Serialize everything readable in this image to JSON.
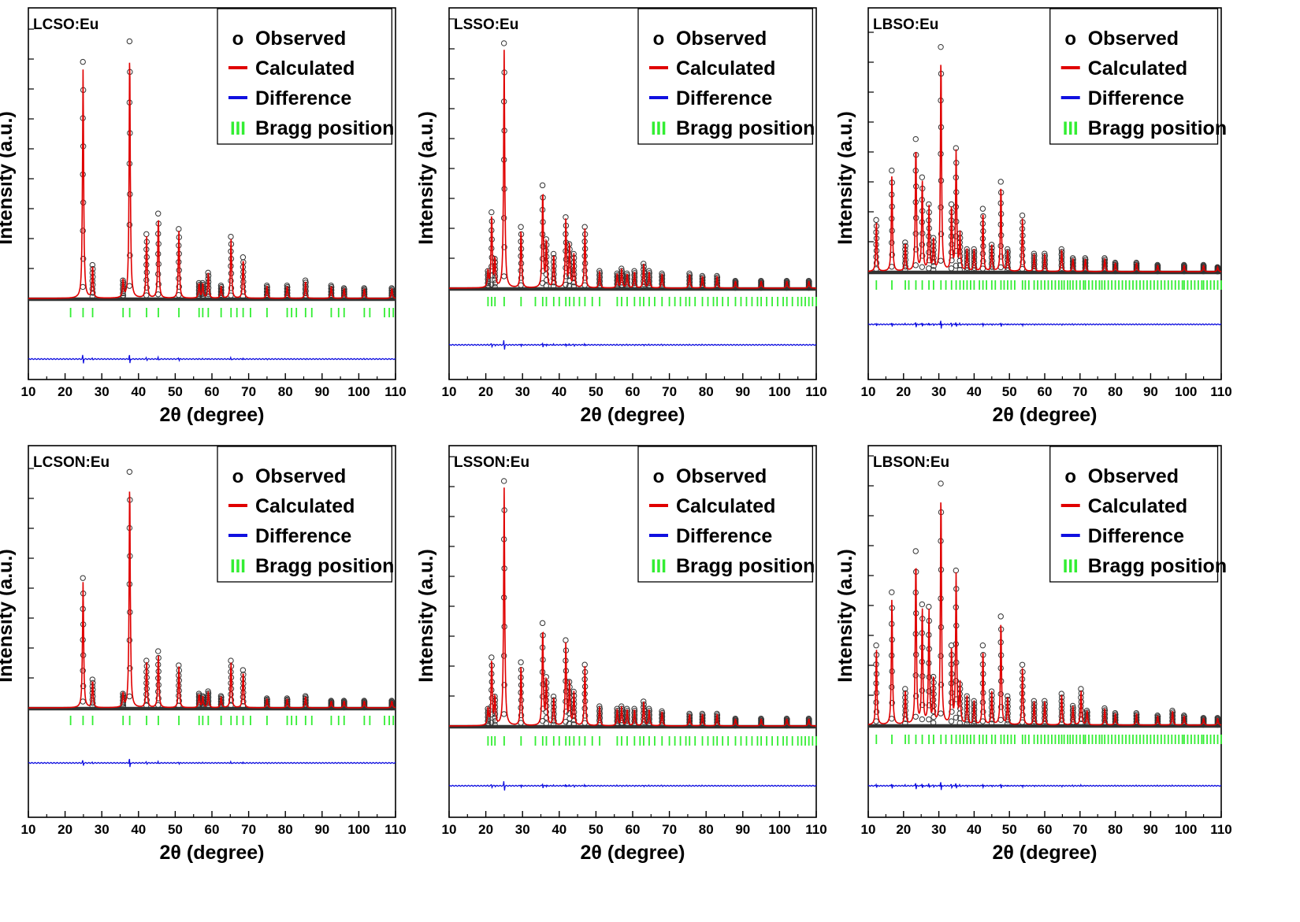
{
  "figure": {
    "background": "#ffffff"
  },
  "colors": {
    "observed": "#333333",
    "calculated": "#e00000",
    "difference": "#1010e0",
    "bragg": "#33ee33",
    "axis": "#000000"
  },
  "legend": {
    "observed_symbol": "o",
    "observed": "Observed",
    "calculated": "Calculated",
    "difference": "Difference",
    "bragg_symbol": "III",
    "bragg": "Bragg position"
  },
  "chart_data": [
    {
      "type": "line",
      "title": "LCSO:Eu",
      "xlabel": "2θ (degree)",
      "ylabel": "Intensity (a.u.)",
      "xlim": [
        10,
        110
      ],
      "xticks": [
        10,
        20,
        30,
        40,
        50,
        60,
        70,
        80,
        90,
        100,
        110
      ],
      "yticks_labeled": false,
      "legend_position": "top-right",
      "series": [
        {
          "name": "Observed",
          "kind": "scatter-open-circles"
        },
        {
          "name": "Calculated",
          "kind": "line"
        },
        {
          "name": "Difference",
          "kind": "line"
        },
        {
          "name": "Bragg position",
          "kind": "ticks"
        }
      ],
      "peaks": [
        [
          24.9,
          0.92
        ],
        [
          27.5,
          0.13
        ],
        [
          35.8,
          0.07
        ],
        [
          37.6,
          1.0
        ],
        [
          42.2,
          0.25
        ],
        [
          45.4,
          0.33
        ],
        [
          51.0,
          0.27
        ],
        [
          56.5,
          0.06
        ],
        [
          57.5,
          0.06
        ],
        [
          59.0,
          0.1
        ],
        [
          62.5,
          0.05
        ],
        [
          65.2,
          0.24
        ],
        [
          68.5,
          0.16
        ],
        [
          75.0,
          0.05
        ],
        [
          80.5,
          0.05
        ],
        [
          85.5,
          0.07
        ],
        [
          92.5,
          0.05
        ],
        [
          96.0,
          0.04
        ],
        [
          101.5,
          0.04
        ],
        [
          109.0,
          0.04
        ]
      ],
      "bragg_positions": [
        21.5,
        24.9,
        27.5,
        35.8,
        37.6,
        42.2,
        45.4,
        51.0,
        56.5,
        57.5,
        59.0,
        62.5,
        65.2,
        66.8,
        68.5,
        70.5,
        75.0,
        80.5,
        81.7,
        83.0,
        85.5,
        87.2,
        92.5,
        94.5,
        96.0,
        101.5,
        103.0,
        107.0,
        108.3,
        109.4
      ]
    },
    {
      "type": "line",
      "title": "LSSO:Eu",
      "xlabel": "2θ (degree)",
      "ylabel": "Intensity (a.u.)",
      "xlim": [
        10,
        110
      ],
      "xticks": [
        10,
        20,
        30,
        40,
        50,
        60,
        70,
        80,
        90,
        100,
        110
      ],
      "yticks_labeled": false,
      "legend_position": "top-right",
      "series": [
        {
          "name": "Observed",
          "kind": "scatter-open-circles"
        },
        {
          "name": "Calculated",
          "kind": "line"
        },
        {
          "name": "Difference",
          "kind": "line"
        },
        {
          "name": "Bragg position",
          "kind": "ticks"
        }
      ],
      "peaks": [
        [
          20.6,
          0.07
        ],
        [
          21.6,
          0.31
        ],
        [
          22.5,
          0.12
        ],
        [
          25.0,
          1.0
        ],
        [
          29.6,
          0.25
        ],
        [
          35.5,
          0.42
        ],
        [
          36.5,
          0.2
        ],
        [
          38.5,
          0.14
        ],
        [
          41.8,
          0.29
        ],
        [
          42.8,
          0.18
        ],
        [
          44.0,
          0.14
        ],
        [
          47.0,
          0.25
        ],
        [
          51.0,
          0.07
        ],
        [
          55.8,
          0.06
        ],
        [
          57.0,
          0.08
        ],
        [
          58.5,
          0.06
        ],
        [
          60.5,
          0.07
        ],
        [
          63.0,
          0.1
        ],
        [
          64.5,
          0.07
        ],
        [
          68.0,
          0.06
        ],
        [
          75.5,
          0.06
        ],
        [
          79.0,
          0.05
        ],
        [
          83.0,
          0.05
        ],
        [
          88.0,
          0.03
        ],
        [
          95.0,
          0.03
        ],
        [
          102.0,
          0.03
        ],
        [
          108.0,
          0.03
        ]
      ],
      "bragg_positions": [
        20.6,
        21.6,
        22.5,
        25.0,
        29.6,
        33.5,
        35.5,
        36.5,
        38.5,
        40.0,
        41.8,
        42.8,
        44.0,
        45.5,
        47.0,
        49.0,
        51.0,
        55.8,
        57.0,
        58.5,
        60.5,
        62.0,
        63.0,
        64.5,
        66.0,
        68.0,
        70.0,
        71.5,
        73.0,
        74.5,
        75.5,
        77.0,
        79.0,
        80.5,
        82.0,
        83.0,
        84.5,
        86.0,
        88.0,
        89.5,
        91.0,
        92.5,
        94.0,
        95.0,
        96.5,
        98.0,
        99.5,
        101.0,
        102.0,
        103.5,
        105.0,
        106.0,
        107.0,
        108.0,
        109.0,
        110.0
      ]
    },
    {
      "type": "line",
      "title": "LBSO:Eu",
      "xlabel": "2θ (degree)",
      "ylabel": "Intensity (a.u.)",
      "xlim": [
        10,
        110
      ],
      "xticks": [
        10,
        20,
        30,
        40,
        50,
        60,
        70,
        80,
        90,
        100,
        110
      ],
      "yticks_labeled": false,
      "legend_position": "top-right",
      "series": [
        {
          "name": "Observed",
          "kind": "scatter-open-circles"
        },
        {
          "name": "Calculated",
          "kind": "line"
        },
        {
          "name": "Difference",
          "kind": "line"
        },
        {
          "name": "Bragg position",
          "kind": "ticks"
        }
      ],
      "peaks": [
        [
          12.3,
          0.23
        ],
        [
          16.7,
          0.45
        ],
        [
          20.5,
          0.13
        ],
        [
          23.5,
          0.59
        ],
        [
          25.3,
          0.42
        ],
        [
          27.2,
          0.3
        ],
        [
          28.5,
          0.15
        ],
        [
          30.6,
          1.0
        ],
        [
          33.6,
          0.3
        ],
        [
          34.9,
          0.55
        ],
        [
          36.0,
          0.17
        ],
        [
          38.0,
          0.1
        ],
        [
          40.0,
          0.1
        ],
        [
          42.5,
          0.28
        ],
        [
          45.0,
          0.12
        ],
        [
          47.6,
          0.4
        ],
        [
          49.5,
          0.1
        ],
        [
          53.7,
          0.25
        ],
        [
          57.0,
          0.08
        ],
        [
          60.0,
          0.08
        ],
        [
          64.8,
          0.1
        ],
        [
          68.0,
          0.06
        ],
        [
          71.5,
          0.06
        ],
        [
          77.0,
          0.06
        ],
        [
          80.0,
          0.04
        ],
        [
          86.0,
          0.04
        ],
        [
          92.0,
          0.03
        ],
        [
          99.5,
          0.03
        ],
        [
          105.0,
          0.03
        ],
        [
          109.0,
          0.02
        ]
      ],
      "bragg_positions": [
        12.3,
        16.7,
        20.5,
        21.5,
        23.5,
        25.3,
        27.2,
        28.5,
        30.6,
        32.0,
        33.6,
        34.9,
        36.0,
        37.0,
        38.0,
        39.0,
        40.0,
        41.5,
        42.5,
        43.5,
        45.0,
        46.0,
        47.6,
        48.5,
        49.5,
        50.5,
        51.5,
        53.7,
        54.5,
        55.5,
        57.0,
        58.0,
        59.0,
        60.0,
        61.0,
        62.0,
        63.0,
        64.0,
        64.8,
        65.5,
        66.5,
        67.2,
        68.0,
        69.0,
        70.0,
        71.0,
        71.5,
        72.5,
        73.5,
        74.5,
        75.5,
        76.2,
        77.0,
        78.0,
        79.0,
        80.0,
        81.0,
        82.0,
        83.0,
        84.0,
        85.0,
        86.0,
        87.0,
        88.0,
        89.0,
        90.0,
        91.0,
        92.0,
        93.0,
        94.0,
        95.0,
        96.0,
        97.0,
        98.0,
        99.0,
        99.5,
        100.5,
        101.5,
        102.5,
        103.5,
        104.5,
        105.0,
        106.0,
        107.0,
        108.0,
        109.0,
        110.0
      ]
    },
    {
      "type": "line",
      "title": "LCSON:Eu",
      "xlabel": "2θ (degree)",
      "ylabel": "Intensity (a.u.)",
      "xlim": [
        10,
        110
      ],
      "xticks": [
        10,
        20,
        30,
        40,
        50,
        60,
        70,
        80,
        90,
        100,
        110
      ],
      "yticks_labeled": false,
      "legend_position": "top-right",
      "series": [
        {
          "name": "Observed",
          "kind": "scatter-open-circles"
        },
        {
          "name": "Calculated",
          "kind": "line"
        },
        {
          "name": "Difference",
          "kind": "line"
        },
        {
          "name": "Bragg position",
          "kind": "ticks"
        }
      ],
      "peaks": [
        [
          24.9,
          0.55
        ],
        [
          27.5,
          0.12
        ],
        [
          35.8,
          0.06
        ],
        [
          37.6,
          1.0
        ],
        [
          42.2,
          0.2
        ],
        [
          45.4,
          0.24
        ],
        [
          51.0,
          0.18
        ],
        [
          56.5,
          0.06
        ],
        [
          57.5,
          0.05
        ],
        [
          59.0,
          0.07
        ],
        [
          62.5,
          0.05
        ],
        [
          65.2,
          0.2
        ],
        [
          68.5,
          0.16
        ],
        [
          75.0,
          0.04
        ],
        [
          80.5,
          0.04
        ],
        [
          85.5,
          0.05
        ],
        [
          92.5,
          0.03
        ],
        [
          96.0,
          0.03
        ],
        [
          101.5,
          0.03
        ],
        [
          109.0,
          0.03
        ]
      ],
      "bragg_positions": [
        21.5,
        24.9,
        27.5,
        35.8,
        37.6,
        42.2,
        45.4,
        51.0,
        56.5,
        57.5,
        59.0,
        62.5,
        65.2,
        66.8,
        68.5,
        70.5,
        75.0,
        80.5,
        81.7,
        83.0,
        85.5,
        87.2,
        92.5,
        94.5,
        96.0,
        101.5,
        103.0,
        107.0,
        108.3,
        109.4
      ]
    },
    {
      "type": "line",
      "title": "LSSON:Eu",
      "xlabel": "2θ (degree)",
      "ylabel": "Intensity (a.u.)",
      "xlim": [
        10,
        110
      ],
      "xticks": [
        10,
        20,
        30,
        40,
        50,
        60,
        70,
        80,
        90,
        100,
        110
      ],
      "yticks_labeled": false,
      "legend_position": "top-right",
      "series": [
        {
          "name": "Observed",
          "kind": "scatter-open-circles"
        },
        {
          "name": "Calculated",
          "kind": "line"
        },
        {
          "name": "Difference",
          "kind": "line"
        },
        {
          "name": "Bragg position",
          "kind": "ticks"
        }
      ],
      "peaks": [
        [
          20.6,
          0.07
        ],
        [
          21.6,
          0.28
        ],
        [
          22.5,
          0.12
        ],
        [
          25.0,
          1.0
        ],
        [
          29.6,
          0.26
        ],
        [
          35.5,
          0.42
        ],
        [
          36.5,
          0.2
        ],
        [
          38.5,
          0.12
        ],
        [
          41.8,
          0.35
        ],
        [
          42.8,
          0.18
        ],
        [
          44.0,
          0.14
        ],
        [
          47.0,
          0.25
        ],
        [
          51.0,
          0.08
        ],
        [
          55.8,
          0.07
        ],
        [
          57.0,
          0.08
        ],
        [
          58.5,
          0.07
        ],
        [
          60.5,
          0.07
        ],
        [
          63.0,
          0.1
        ],
        [
          64.5,
          0.07
        ],
        [
          68.0,
          0.06
        ],
        [
          75.5,
          0.05
        ],
        [
          79.0,
          0.05
        ],
        [
          83.0,
          0.05
        ],
        [
          88.0,
          0.03
        ],
        [
          95.0,
          0.03
        ],
        [
          102.0,
          0.03
        ],
        [
          108.0,
          0.03
        ]
      ],
      "bragg_positions": [
        20.6,
        21.6,
        22.5,
        25.0,
        29.6,
        33.5,
        35.5,
        36.5,
        38.5,
        40.0,
        41.8,
        42.8,
        44.0,
        45.5,
        47.0,
        49.0,
        51.0,
        55.8,
        57.0,
        58.5,
        60.5,
        62.0,
        63.0,
        64.5,
        66.0,
        68.0,
        70.0,
        71.5,
        73.0,
        74.5,
        75.5,
        77.0,
        79.0,
        80.5,
        82.0,
        83.0,
        84.5,
        86.0,
        88.0,
        89.5,
        91.0,
        92.5,
        94.0,
        95.0,
        96.5,
        98.0,
        99.5,
        101.0,
        102.0,
        103.5,
        105.0,
        106.0,
        107.0,
        108.0,
        109.0,
        110.0
      ]
    },
    {
      "type": "line",
      "title": "LBSON:Eu",
      "xlabel": "2θ (degree)",
      "ylabel": "Intensity (a.u.)",
      "xlim": [
        10,
        110
      ],
      "xticks": [
        10,
        20,
        30,
        40,
        50,
        60,
        70,
        80,
        90,
        100,
        110
      ],
      "yticks_labeled": false,
      "legend_position": "top-right",
      "series": [
        {
          "name": "Observed",
          "kind": "scatter-open-circles"
        },
        {
          "name": "Calculated",
          "kind": "line"
        },
        {
          "name": "Difference",
          "kind": "line"
        },
        {
          "name": "Bragg position",
          "kind": "ticks"
        }
      ],
      "peaks": [
        [
          12.3,
          0.33
        ],
        [
          16.7,
          0.55
        ],
        [
          20.5,
          0.15
        ],
        [
          23.5,
          0.72
        ],
        [
          25.3,
          0.5
        ],
        [
          27.2,
          0.49
        ],
        [
          28.5,
          0.2
        ],
        [
          30.6,
          1.0
        ],
        [
          33.6,
          0.33
        ],
        [
          34.9,
          0.64
        ],
        [
          36.0,
          0.17
        ],
        [
          38.0,
          0.12
        ],
        [
          40.0,
          0.1
        ],
        [
          42.5,
          0.33
        ],
        [
          45.0,
          0.14
        ],
        [
          47.6,
          0.45
        ],
        [
          49.5,
          0.12
        ],
        [
          53.7,
          0.25
        ],
        [
          57.0,
          0.1
        ],
        [
          60.0,
          0.1
        ],
        [
          64.8,
          0.13
        ],
        [
          68.0,
          0.08
        ],
        [
          70.3,
          0.15
        ],
        [
          72.0,
          0.06
        ],
        [
          77.0,
          0.07
        ],
        [
          80.0,
          0.05
        ],
        [
          86.0,
          0.05
        ],
        [
          92.0,
          0.04
        ],
        [
          96.2,
          0.06
        ],
        [
          99.5,
          0.04
        ],
        [
          105.0,
          0.03
        ],
        [
          109.0,
          0.03
        ]
      ],
      "bragg_positions": [
        12.3,
        16.7,
        20.5,
        21.5,
        23.5,
        25.3,
        27.2,
        28.5,
        30.6,
        32.0,
        33.6,
        34.9,
        36.0,
        37.0,
        38.0,
        39.0,
        40.0,
        41.5,
        42.5,
        43.5,
        45.0,
        46.0,
        47.6,
        48.5,
        49.5,
        50.5,
        51.5,
        53.7,
        54.5,
        55.5,
        57.0,
        58.0,
        59.0,
        60.0,
        61.0,
        62.0,
        63.0,
        64.0,
        64.8,
        65.5,
        66.5,
        67.2,
        68.0,
        69.0,
        70.0,
        71.0,
        71.5,
        72.5,
        73.5,
        74.5,
        75.5,
        76.2,
        77.0,
        78.0,
        79.0,
        80.0,
        81.0,
        82.0,
        83.0,
        84.0,
        85.0,
        86.0,
        87.0,
        88.0,
        89.0,
        90.0,
        91.0,
        92.0,
        93.0,
        94.0,
        95.0,
        96.0,
        97.0,
        98.0,
        99.0,
        99.5,
        100.5,
        101.5,
        102.5,
        103.5,
        104.5,
        105.0,
        106.0,
        107.0,
        108.0,
        109.0,
        110.0
      ]
    }
  ]
}
